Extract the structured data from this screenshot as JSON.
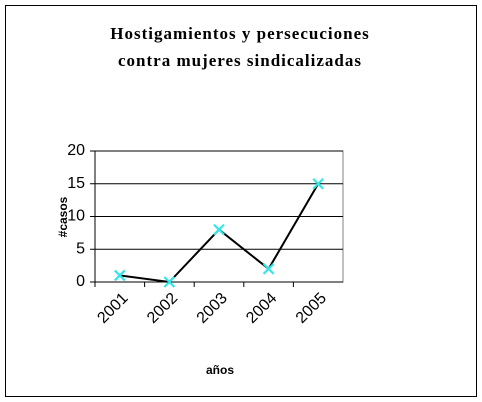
{
  "chart_data": {
    "type": "line",
    "title": [
      "Hostigamientos y persecuciones",
      "contra mujeres sindicalizadas"
    ],
    "x_label": "años",
    "y_label": "#casos",
    "categories": [
      "2001",
      "2002",
      "2003",
      "2004",
      "2005"
    ],
    "series": [
      {
        "name": "casos",
        "color": "#000000",
        "marker_color": "#33e6e6",
        "values": [
          1,
          0,
          8,
          2,
          15
        ]
      }
    ],
    "ylim": [
      0,
      20
    ],
    "yticks": [
      0,
      5,
      10,
      15,
      20
    ],
    "grid": true,
    "legend": false
  }
}
